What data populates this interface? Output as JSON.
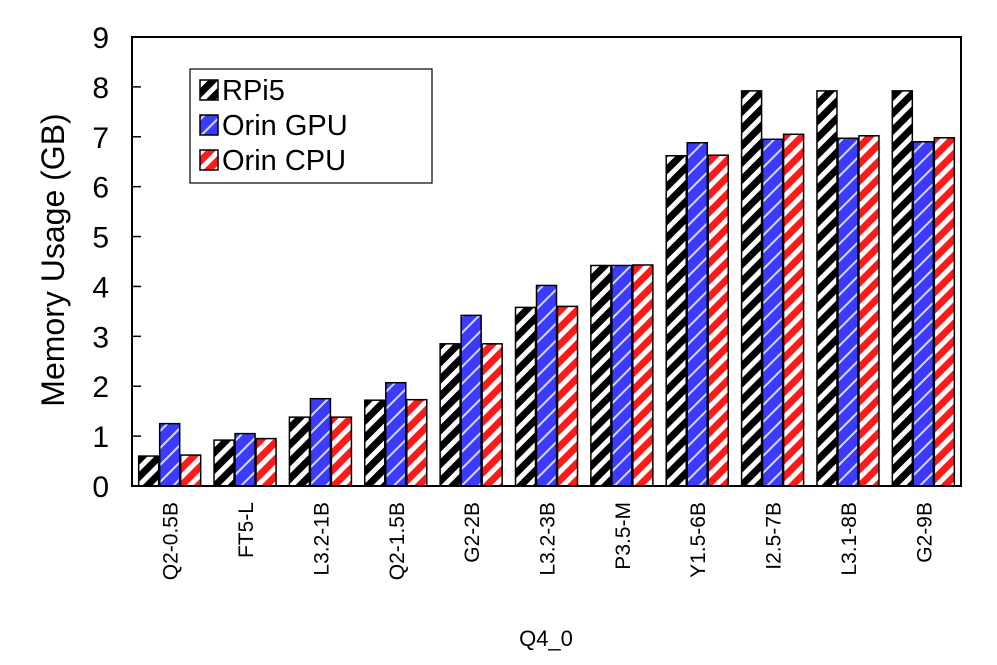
{
  "chart_data": {
    "type": "bar",
    "title": "",
    "xlabel": "Q4_0",
    "ylabel": "Memory Usage (GB)",
    "ylim": [
      0,
      9
    ],
    "yticks": [
      "0",
      "1",
      "2",
      "3",
      "4",
      "5",
      "6",
      "7",
      "8",
      "9"
    ],
    "categories": [
      "Q2-0.5B",
      "FT5-L",
      "L3.2-1B",
      "Q2-1.5B",
      "G2-2B",
      "L3.2-3B",
      "P3.5-M",
      "Y1.5-6B",
      "I2.5-7B",
      "L3.1-8B",
      "G2-9B"
    ],
    "series": [
      {
        "name": "RPi5",
        "color": "#000000",
        "values": [
          0.6,
          0.92,
          1.38,
          1.72,
          2.85,
          3.58,
          4.42,
          6.62,
          7.92,
          7.92,
          7.92
        ]
      },
      {
        "name": "Orin GPU",
        "color": "#3b3bff",
        "values": [
          1.25,
          1.05,
          1.75,
          2.07,
          3.42,
          4.02,
          4.42,
          6.88,
          6.95,
          6.97,
          6.9
        ]
      },
      {
        "name": "Orin CPU",
        "color": "#ff1a1a",
        "values": [
          0.62,
          0.95,
          1.38,
          1.73,
          2.85,
          3.6,
          4.43,
          6.63,
          7.05,
          7.02,
          6.98
        ]
      }
    ],
    "grid": false,
    "legend_position": "top-left"
  }
}
